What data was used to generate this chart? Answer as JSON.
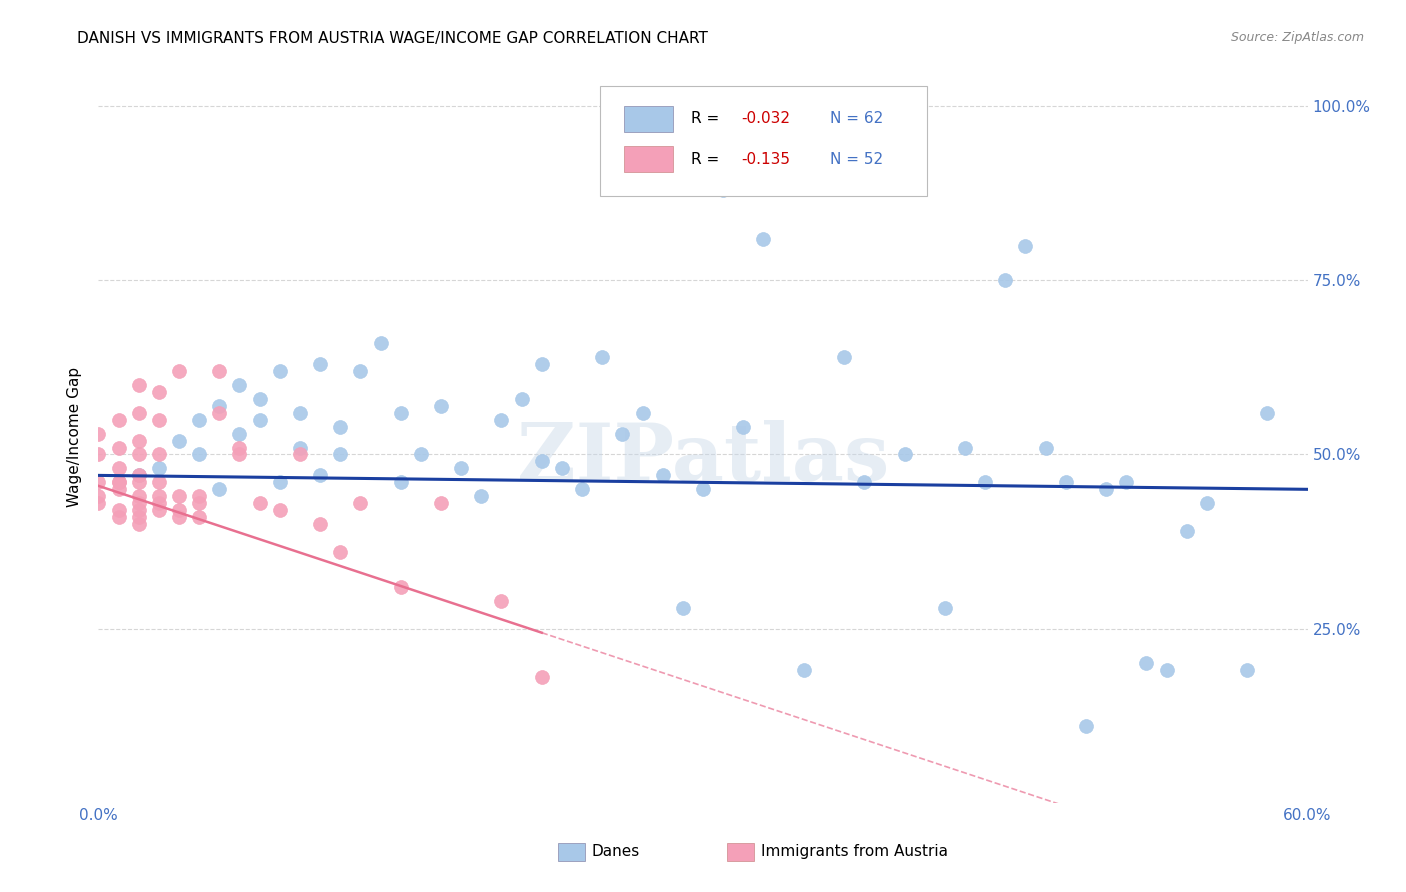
{
  "title": "DANISH VS IMMIGRANTS FROM AUSTRIA WAGE/INCOME GAP CORRELATION CHART",
  "source": "Source: ZipAtlas.com",
  "ylabel": "Wage/Income Gap",
  "xlim": [
    0.0,
    0.6
  ],
  "ylim": [
    0.0,
    1.05
  ],
  "xticks": [
    0.0,
    0.1,
    0.2,
    0.3,
    0.4,
    0.5,
    0.6
  ],
  "xticklabels": [
    "0.0%",
    "",
    "",
    "",
    "",
    "",
    "60.0%"
  ],
  "yticks": [
    0.25,
    0.5,
    0.75,
    1.0
  ],
  "yticklabels": [
    "25.0%",
    "50.0%",
    "75.0%",
    "100.0%"
  ],
  "blue_color": "#a8c8e8",
  "pink_color": "#f4a0b8",
  "blue_line_color": "#1a3fa0",
  "pink_line_color": "#e87090",
  "background_color": "#ffffff",
  "grid_color": "#cccccc",
  "watermark": "ZIPatlas",
  "danes_R": -0.032,
  "danes_N": 62,
  "austria_R": -0.135,
  "austria_N": 52,
  "danes_scatter_x": [
    0.02,
    0.03,
    0.04,
    0.05,
    0.05,
    0.06,
    0.06,
    0.07,
    0.07,
    0.08,
    0.08,
    0.09,
    0.09,
    0.1,
    0.1,
    0.11,
    0.11,
    0.12,
    0.12,
    0.13,
    0.14,
    0.15,
    0.15,
    0.16,
    0.17,
    0.18,
    0.19,
    0.2,
    0.21,
    0.22,
    0.22,
    0.23,
    0.24,
    0.25,
    0.26,
    0.27,
    0.28,
    0.29,
    0.3,
    0.31,
    0.32,
    0.33,
    0.35,
    0.37,
    0.38,
    0.4,
    0.42,
    0.43,
    0.44,
    0.45,
    0.46,
    0.47,
    0.48,
    0.49,
    0.5,
    0.51,
    0.52,
    0.53,
    0.54,
    0.55,
    0.57,
    0.58
  ],
  "danes_scatter_y": [
    0.47,
    0.48,
    0.52,
    0.5,
    0.55,
    0.45,
    0.57,
    0.53,
    0.6,
    0.55,
    0.58,
    0.46,
    0.62,
    0.51,
    0.56,
    0.47,
    0.63,
    0.5,
    0.54,
    0.62,
    0.66,
    0.46,
    0.56,
    0.5,
    0.57,
    0.48,
    0.44,
    0.55,
    0.58,
    0.49,
    0.63,
    0.48,
    0.45,
    0.64,
    0.53,
    0.56,
    0.47,
    0.28,
    0.45,
    0.88,
    0.54,
    0.81,
    0.19,
    0.64,
    0.46,
    0.5,
    0.28,
    0.51,
    0.46,
    0.75,
    0.8,
    0.51,
    0.46,
    0.11,
    0.45,
    0.46,
    0.2,
    0.19,
    0.39,
    0.43,
    0.19,
    0.56
  ],
  "austria_scatter_x": [
    0.0,
    0.0,
    0.0,
    0.0,
    0.0,
    0.01,
    0.01,
    0.01,
    0.01,
    0.01,
    0.01,
    0.01,
    0.01,
    0.02,
    0.02,
    0.02,
    0.02,
    0.02,
    0.02,
    0.02,
    0.02,
    0.02,
    0.02,
    0.02,
    0.03,
    0.03,
    0.03,
    0.03,
    0.03,
    0.03,
    0.03,
    0.04,
    0.04,
    0.04,
    0.04,
    0.05,
    0.05,
    0.05,
    0.06,
    0.06,
    0.07,
    0.07,
    0.08,
    0.09,
    0.1,
    0.11,
    0.12,
    0.13,
    0.15,
    0.17,
    0.2,
    0.22
  ],
  "austria_scatter_y": [
    0.44,
    0.43,
    0.46,
    0.5,
    0.53,
    0.45,
    0.46,
    0.41,
    0.42,
    0.46,
    0.48,
    0.51,
    0.55,
    0.42,
    0.43,
    0.44,
    0.46,
    0.47,
    0.4,
    0.41,
    0.5,
    0.52,
    0.56,
    0.6,
    0.43,
    0.42,
    0.44,
    0.46,
    0.5,
    0.55,
    0.59,
    0.42,
    0.41,
    0.44,
    0.62,
    0.44,
    0.41,
    0.43,
    0.62,
    0.56,
    0.51,
    0.5,
    0.43,
    0.42,
    0.5,
    0.4,
    0.36,
    0.43,
    0.31,
    0.43,
    0.29,
    0.18
  ],
  "legend_R1": "R = ",
  "legend_V1": "-0.032",
  "legend_N1": "N = 62",
  "legend_R2": "R = ",
  "legend_V2": "-0.135",
  "legend_N2": "N = 52"
}
